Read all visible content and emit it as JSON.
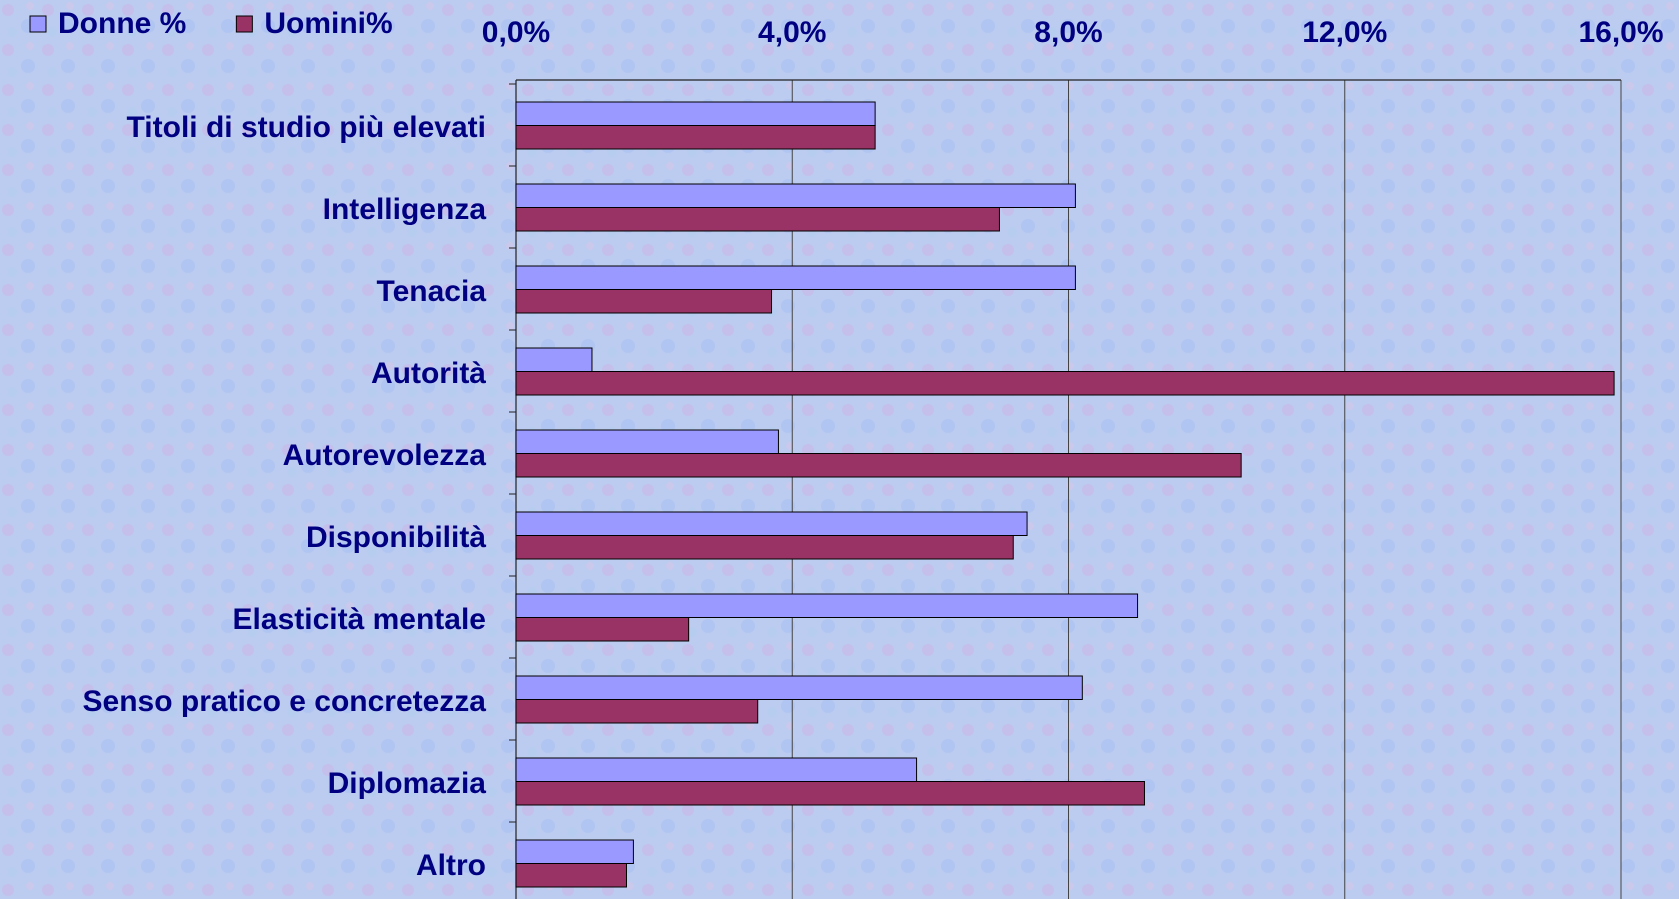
{
  "chart_data": {
    "type": "hbar",
    "categories": [
      "Titoli di studio più elevati",
      "Intelligenza",
      "Tenacia",
      "Autorità",
      "Autorevolezza",
      "Disponibilità",
      "Elasticità mentale",
      "Senso pratico e concretezza",
      "Diplomazia",
      "Altro"
    ],
    "series": [
      {
        "name": "Donne %",
        "color": "#9999ff",
        "values": [
          5.2,
          8.1,
          8.1,
          1.1,
          3.8,
          7.4,
          9.0,
          8.2,
          5.8,
          1.7
        ]
      },
      {
        "name": "Uomini%",
        "color": "#993366",
        "values": [
          5.2,
          7.0,
          3.7,
          15.9,
          10.5,
          7.2,
          2.5,
          3.5,
          9.1,
          1.6
        ]
      }
    ],
    "xlim": [
      0,
      16
    ],
    "xticks": [
      {
        "value": 0,
        "label": "0,0%"
      },
      {
        "value": 4,
        "label": "4,0%"
      },
      {
        "value": 8,
        "label": "8,0%"
      },
      {
        "value": 12,
        "label": "12,0%"
      },
      {
        "value": 16,
        "label": "16,0%"
      }
    ],
    "grid": true,
    "legend": "top-left"
  }
}
